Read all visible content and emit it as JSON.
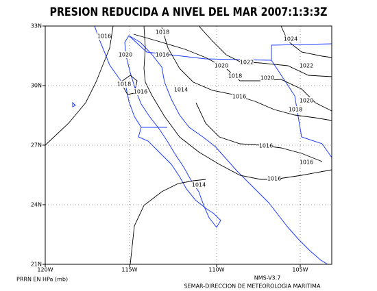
{
  "title": "PRESION REDUCIDA A NIVEL DEL MAR 2007:1:3:3Z",
  "lat_labels": [
    "33N",
    "30N",
    "27N",
    "24N",
    "21N"
  ],
  "lon_labels": [
    "120W",
    "115W",
    "110W",
    "105W"
  ],
  "contour_labels": [
    1016,
    1018,
    1020,
    1016,
    1024,
    1020,
    1022,
    1022,
    1018,
    1020,
    1018,
    1016,
    1014,
    1016,
    1018,
    1020,
    1016,
    1016,
    1016,
    1014
  ],
  "footer": {
    "units": "PRRN EN HPa (mb)",
    "version": "NMS-V3.7",
    "agency": "SEMAR-DIRECCION DE METEOROLOGIA MARITIMA"
  }
}
